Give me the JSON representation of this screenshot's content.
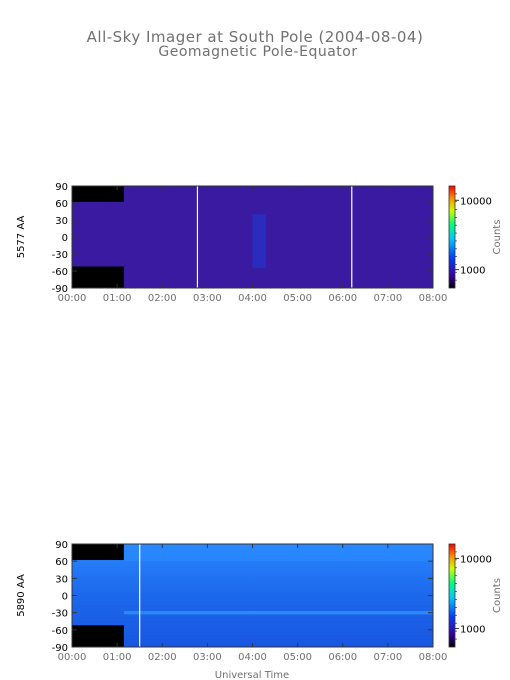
{
  "title": "All-Sky Imager at South Pole (2004-08-04)",
  "subtitle": "Geomagnetic Pole-Equator",
  "xlabel": "Universal Time",
  "colors": {
    "low": "#230068",
    "mid": "#0a7dff",
    "high": "#ff1a00",
    "data_gap": "#000000"
  },
  "chart_data": [
    {
      "type": "heatmap",
      "ylabel": "5577 AA",
      "x_ticks": [
        "00:00",
        "01:00",
        "02:00",
        "03:00",
        "04:00",
        "05:00",
        "06:00",
        "07:00",
        "08:00"
      ],
      "xlim_hours": [
        0,
        8
      ],
      "y_ticks": [
        90,
        60,
        30,
        0,
        -30,
        -60,
        -90
      ],
      "ylim": [
        -90,
        90
      ],
      "colorbar": {
        "label": "Counts",
        "ticks": [
          "10000",
          "1000"
        ],
        "scale": "log"
      },
      "fill": "#3a1aa0",
      "data_gaps": [
        {
          "t0": 0.0,
          "t1": 1.15,
          "y0": 62,
          "y1": 90
        },
        {
          "t0": 0.0,
          "t1": 1.15,
          "y0": -90,
          "y1": -52
        }
      ],
      "vertical_lines_hours": [
        2.78,
        6.2
      ],
      "features": [
        {
          "t0": 4.0,
          "t1": 4.3,
          "y0": -55,
          "y1": 40,
          "color": "#1c3cd8"
        }
      ]
    },
    {
      "type": "heatmap",
      "ylabel": "5890 AA",
      "x_ticks": [
        "00:00",
        "01:00",
        "02:00",
        "03:00",
        "04:00",
        "05:00",
        "06:00",
        "07:00",
        "08:00"
      ],
      "xlim_hours": [
        0,
        8
      ],
      "y_ticks": [
        90,
        60,
        30,
        0,
        -30,
        -60,
        -90
      ],
      "ylim": [
        -90,
        90
      ],
      "colorbar": {
        "label": "Counts",
        "ticks": [
          "10000",
          "1000"
        ],
        "scale": "log"
      },
      "fill": "#1e6ef0",
      "data_gaps": [
        {
          "t0": 0.0,
          "t1": 1.15,
          "y0": 62,
          "y1": 90
        },
        {
          "t0": 0.0,
          "t1": 1.15,
          "y0": -90,
          "y1": -52
        }
      ],
      "vertical_lines_hours": [
        1.5
      ],
      "features": [
        {
          "t0": 1.15,
          "t1": 8.0,
          "y0": 60,
          "y1": 90,
          "color": "#2a8cff"
        },
        {
          "t0": 1.15,
          "t1": 8.0,
          "y0": -33,
          "y1": -27,
          "color": "#3aa8ff"
        }
      ]
    }
  ]
}
